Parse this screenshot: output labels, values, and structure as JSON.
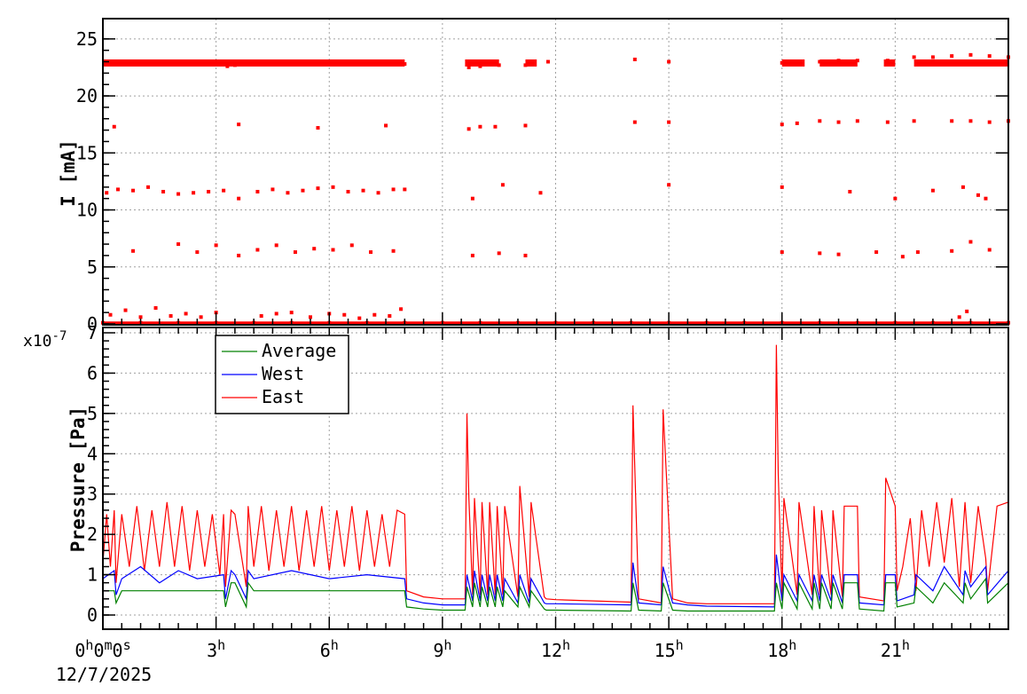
{
  "chart_data": [
    {
      "type": "scatter",
      "ylabel": "I [mA]",
      "ylim": [
        0,
        26
      ],
      "yticks": [
        "0",
        "5",
        "10",
        "15",
        "20",
        "25"
      ],
      "grid": true,
      "color": "#ff0000",
      "series": [
        {
          "x": [
            0.05,
            0.5,
            1.0,
            1.5,
            2.0,
            2.5,
            3.0,
            3.3,
            3.5,
            4.0,
            4.5,
            5.0,
            5.5,
            6.0,
            6.5,
            7.0,
            7.5,
            8.0,
            9.7,
            10.0,
            10.5,
            11.2,
            11.8,
            14.1,
            15.0,
            18.0,
            18.5,
            19.0,
            19.5,
            20.0,
            20.8,
            21.5,
            22.0,
            22.5,
            23.0,
            23.5,
            24.0
          ],
          "y": [
            22.9,
            22.9,
            22.9,
            22.8,
            22.8,
            22.8,
            22.8,
            22.6,
            22.7,
            22.8,
            22.9,
            22.9,
            23.0,
            23.0,
            22.9,
            22.9,
            22.8,
            22.8,
            22.5,
            22.6,
            22.7,
            22.7,
            23.0,
            23.2,
            23.0,
            22.9,
            22.9,
            23.0,
            23.1,
            23.1,
            23.1,
            23.4,
            23.4,
            23.5,
            23.6,
            23.5,
            23.4
          ]
        },
        {
          "x": [
            0.3,
            3.6,
            5.7,
            7.5,
            9.7,
            10.0,
            10.4,
            11.2,
            14.1,
            15.0,
            18.0,
            18.4,
            19.0,
            19.5,
            20.0,
            20.8,
            21.5,
            22.5,
            23.0,
            23.5,
            24.0
          ],
          "y": [
            17.3,
            17.5,
            17.2,
            17.4,
            17.1,
            17.3,
            17.3,
            17.4,
            17.7,
            17.7,
            17.5,
            17.6,
            17.8,
            17.7,
            17.8,
            17.7,
            17.8,
            17.8,
            17.8,
            17.7,
            17.8
          ]
        },
        {
          "x": [
            0.1,
            0.4,
            0.8,
            1.2,
            1.6,
            2.0,
            2.4,
            2.8,
            3.2,
            3.6,
            4.1,
            4.5,
            4.9,
            5.3,
            5.7,
            6.1,
            6.5,
            6.9,
            7.3,
            7.7,
            8.0,
            9.8,
            10.6,
            11.6,
            15.0,
            18.0,
            19.8,
            21.0,
            22.0,
            22.8,
            23.2,
            23.4
          ],
          "y": [
            11.5,
            11.8,
            11.7,
            12.0,
            11.6,
            11.4,
            11.5,
            11.6,
            11.7,
            11.0,
            11.6,
            11.8,
            11.5,
            11.7,
            11.9,
            12.0,
            11.6,
            11.7,
            11.5,
            11.8,
            11.8,
            11.0,
            12.2,
            11.5,
            12.2,
            12.0,
            11.6,
            11.0,
            11.7,
            12.0,
            11.3,
            11.0
          ]
        },
        {
          "x": [
            0.8,
            2.0,
            2.5,
            3.0,
            3.6,
            4.1,
            4.6,
            5.1,
            5.6,
            6.1,
            6.6,
            7.1,
            7.7,
            9.8,
            10.5,
            11.2,
            18.0,
            19.0,
            19.5,
            20.5,
            21.2,
            21.6,
            22.5,
            23.0,
            23.5
          ],
          "y": [
            6.4,
            7.0,
            6.3,
            6.9,
            6.0,
            6.5,
            6.9,
            6.3,
            6.6,
            6.5,
            6.9,
            6.3,
            6.4,
            6.0,
            6.2,
            6.0,
            6.3,
            6.2,
            6.1,
            6.3,
            5.9,
            6.3,
            6.4,
            7.2,
            6.5
          ]
        },
        {
          "x": [
            0.0,
            1.0,
            2.0,
            3.0,
            4.0,
            5.0,
            6.0,
            7.0,
            8.0,
            9.0,
            10.0,
            11.0,
            12.0,
            13.0,
            14.0,
            15.0,
            16.0,
            17.0,
            18.0,
            19.0,
            20.0,
            21.0,
            22.0,
            23.0,
            24.0
          ],
          "y": [
            0.1,
            0.1,
            0.1,
            0.1,
            0.1,
            0.1,
            0.1,
            0.1,
            0.1,
            0.1,
            0.1,
            0.1,
            0.1,
            0.1,
            0.1,
            0.1,
            0.1,
            0.1,
            0.1,
            0.1,
            0.1,
            0.1,
            0.1,
            0.1,
            0.1
          ]
        },
        {
          "x": [
            0.2,
            0.6,
            1.0,
            1.4,
            1.8,
            2.2,
            2.6,
            3.0,
            4.2,
            4.6,
            5.0,
            5.5,
            6.0,
            6.4,
            6.8,
            7.2,
            7.6,
            7.9,
            22.7,
            22.9
          ],
          "y": [
            0.8,
            1.2,
            0.6,
            1.4,
            0.7,
            0.9,
            0.6,
            1.0,
            0.7,
            0.9,
            1.0,
            0.6,
            0.9,
            0.8,
            0.5,
            0.8,
            0.7,
            1.3,
            0.6,
            1.1
          ]
        }
      ]
    },
    {
      "type": "line",
      "ylabel": "Pressure [Pa]",
      "exponent": "x10",
      "exponent_power": "-7",
      "ylim": [
        0,
        7
      ],
      "yticks": [
        "0",
        "1",
        "2",
        "3",
        "4",
        "5",
        "6",
        "7"
      ],
      "grid": true,
      "legend_position": "top-left",
      "x_unit": "hours",
      "xlim": [
        0,
        24
      ],
      "x_tick_hours": [
        0,
        3,
        6,
        9,
        12,
        15,
        18,
        21
      ],
      "x_tick_labels": [
        {
          "main": "0",
          "sup": "h",
          "rest": "0",
          "sup2": "m",
          "rest2": "0",
          "sup3": "s"
        },
        {
          "main": "3",
          "sup": "h"
        },
        {
          "main": "6",
          "sup": "h"
        },
        {
          "main": "9",
          "sup": "h"
        },
        {
          "main": "12",
          "sup": "h"
        },
        {
          "main": "15",
          "sup": "h"
        },
        {
          "main": "18",
          "sup": "h"
        },
        {
          "main": "21",
          "sup": "h"
        }
      ],
      "date_label": "12/7/2025",
      "series": [
        {
          "name": "Average",
          "color": "#008000",
          "x": [
            0,
            0.3,
            0.35,
            0.5,
            3.2,
            3.25,
            3.4,
            3.5,
            3.8,
            3.85,
            4.0,
            8.0,
            8.05,
            8.5,
            9.0,
            9.6,
            9.65,
            9.8,
            9.85,
            10.0,
            10.05,
            10.2,
            10.25,
            10.4,
            10.45,
            10.6,
            10.65,
            11.0,
            11.05,
            11.3,
            11.35,
            11.7,
            11.75,
            12.0,
            14.0,
            14.05,
            14.2,
            14.8,
            14.85,
            15.1,
            15.5,
            16.0,
            17.8,
            17.85,
            18.0,
            18.05,
            18.4,
            18.45,
            18.8,
            18.85,
            19.0,
            19.05,
            19.3,
            19.35,
            19.6,
            19.65,
            20.0,
            20.05,
            20.7,
            20.75,
            21.0,
            21.05,
            21.5,
            21.55,
            22.0,
            22.3,
            22.8,
            22.85,
            23.0,
            23.4,
            23.45,
            24.0
          ],
          "y": [
            0.6,
            0.6,
            0.3,
            0.6,
            0.6,
            0.2,
            0.8,
            0.8,
            0.2,
            0.8,
            0.6,
            0.6,
            0.2,
            0.15,
            0.12,
            0.12,
            0.7,
            0.2,
            0.8,
            0.2,
            0.7,
            0.2,
            0.7,
            0.2,
            0.7,
            0.2,
            0.6,
            0.2,
            0.7,
            0.2,
            0.6,
            0.15,
            0.12,
            0.12,
            0.1,
            0.8,
            0.12,
            0.1,
            0.8,
            0.12,
            0.1,
            0.1,
            0.1,
            0.8,
            0.15,
            0.8,
            0.15,
            0.8,
            0.15,
            0.8,
            0.15,
            0.8,
            0.15,
            0.8,
            0.15,
            0.8,
            0.8,
            0.15,
            0.1,
            0.8,
            0.8,
            0.2,
            0.3,
            0.7,
            0.3,
            0.8,
            0.3,
            0.8,
            0.4,
            0.9,
            0.3,
            0.8
          ]
        },
        {
          "name": "West",
          "color": "#0000ff",
          "x": [
            0,
            0.3,
            0.35,
            0.5,
            1.0,
            1.5,
            2.0,
            2.5,
            3.2,
            3.25,
            3.4,
            3.5,
            3.8,
            3.85,
            4.0,
            5.0,
            6.0,
            7.0,
            8.0,
            8.05,
            8.5,
            9.0,
            9.6,
            9.65,
            9.8,
            9.85,
            10.0,
            10.05,
            10.2,
            10.25,
            10.4,
            10.45,
            10.6,
            10.65,
            11.0,
            11.05,
            11.3,
            11.35,
            11.7,
            11.75,
            12.0,
            14.0,
            14.05,
            14.2,
            14.8,
            14.85,
            15.1,
            15.5,
            16.0,
            17.8,
            17.85,
            18.0,
            18.05,
            18.4,
            18.45,
            18.8,
            18.85,
            19.0,
            19.05,
            19.3,
            19.35,
            19.6,
            19.65,
            20.0,
            20.05,
            20.7,
            20.75,
            21.0,
            21.05,
            21.5,
            21.55,
            22.0,
            22.3,
            22.8,
            22.85,
            23.0,
            23.4,
            23.45,
            24.0
          ],
          "y": [
            0.9,
            1.1,
            0.5,
            0.9,
            1.2,
            0.8,
            1.1,
            0.9,
            1.0,
            0.4,
            1.1,
            1.0,
            0.4,
            1.1,
            0.9,
            1.1,
            0.9,
            1.0,
            0.9,
            0.4,
            0.3,
            0.25,
            0.25,
            1.0,
            0.35,
            1.1,
            0.35,
            1.0,
            0.35,
            1.0,
            0.35,
            1.0,
            0.35,
            0.9,
            0.3,
            1.0,
            0.3,
            0.9,
            0.3,
            0.28,
            0.28,
            0.25,
            1.3,
            0.3,
            0.25,
            1.2,
            0.3,
            0.25,
            0.22,
            0.2,
            1.5,
            0.35,
            1.0,
            0.35,
            1.0,
            0.35,
            1.0,
            0.35,
            1.0,
            0.35,
            1.0,
            0.3,
            1.0,
            1.0,
            0.3,
            0.25,
            1.0,
            1.0,
            0.35,
            0.5,
            1.0,
            0.6,
            1.2,
            0.5,
            1.1,
            0.7,
            1.2,
            0.5,
            1.1
          ]
        },
        {
          "name": "East",
          "color": "#ff0000",
          "x": [
            0,
            0.1,
            0.2,
            0.3,
            0.35,
            0.5,
            0.7,
            0.9,
            1.1,
            1.3,
            1.5,
            1.7,
            1.9,
            2.1,
            2.3,
            2.5,
            2.7,
            2.9,
            3.1,
            3.2,
            3.25,
            3.4,
            3.5,
            3.8,
            3.85,
            4.0,
            4.2,
            4.4,
            4.6,
            4.8,
            5.0,
            5.2,
            5.4,
            5.6,
            5.8,
            6.0,
            6.2,
            6.4,
            6.6,
            6.8,
            7.0,
            7.2,
            7.4,
            7.6,
            7.8,
            8.0,
            8.05,
            8.5,
            9.0,
            9.6,
            9.65,
            9.7,
            9.8,
            9.85,
            10.0,
            10.05,
            10.2,
            10.25,
            10.4,
            10.45,
            10.6,
            10.65,
            11.0,
            11.05,
            11.3,
            11.35,
            11.7,
            11.75,
            12.0,
            14.0,
            14.05,
            14.2,
            14.8,
            14.85,
            15.1,
            15.5,
            16.0,
            17.8,
            17.85,
            17.9,
            18.0,
            18.05,
            18.4,
            18.45,
            18.8,
            18.85,
            19.0,
            19.05,
            19.3,
            19.35,
            19.6,
            19.65,
            20.0,
            20.05,
            20.7,
            20.75,
            21.0,
            21.05,
            21.2,
            21.4,
            21.55,
            21.7,
            21.9,
            22.1,
            22.3,
            22.5,
            22.7,
            22.85,
            23.0,
            23.2,
            23.4,
            23.45,
            23.7,
            24.0
          ],
          "y": [
            1.3,
            2.5,
            1.2,
            2.6,
            0.8,
            2.5,
            1.2,
            2.7,
            1.1,
            2.6,
            1.2,
            2.8,
            1.2,
            2.7,
            1.1,
            2.6,
            1.2,
            2.5,
            1.0,
            2.5,
            0.7,
            2.6,
            2.5,
            0.7,
            2.7,
            1.2,
            2.7,
            1.1,
            2.6,
            1.2,
            2.7,
            1.1,
            2.6,
            1.2,
            2.7,
            1.1,
            2.6,
            1.2,
            2.7,
            1.1,
            2.6,
            1.2,
            2.5,
            1.2,
            2.6,
            2.5,
            0.6,
            0.45,
            0.4,
            0.4,
            5.0,
            2.9,
            0.5,
            2.9,
            0.5,
            2.8,
            0.5,
            2.8,
            0.5,
            2.7,
            0.5,
            2.7,
            0.45,
            3.2,
            0.45,
            2.8,
            0.45,
            0.4,
            0.38,
            0.32,
            5.2,
            0.4,
            0.3,
            5.1,
            0.4,
            0.3,
            0.28,
            0.28,
            6.7,
            3.5,
            0.5,
            2.9,
            0.5,
            2.8,
            0.5,
            2.7,
            0.5,
            2.6,
            0.5,
            2.6,
            0.45,
            2.7,
            2.7,
            0.45,
            0.35,
            3.4,
            2.7,
            0.6,
            1.2,
            2.4,
            0.6,
            2.6,
            1.2,
            2.8,
            1.3,
            2.9,
            0.7,
            2.8,
            0.8,
            2.7,
            1.4,
            0.6,
            2.7,
            2.8
          ]
        }
      ]
    }
  ]
}
